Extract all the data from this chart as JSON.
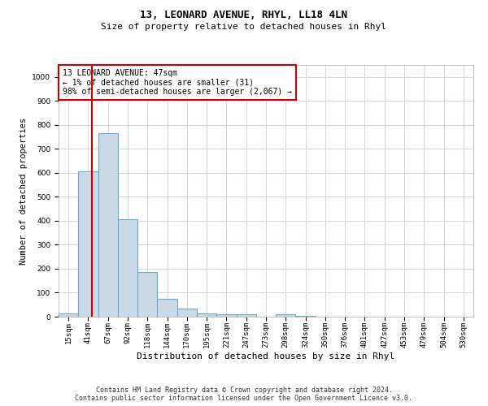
{
  "title": "13, LEONARD AVENUE, RHYL, LL18 4LN",
  "subtitle": "Size of property relative to detached houses in Rhyl",
  "xlabel": "Distribution of detached houses by size in Rhyl",
  "ylabel": "Number of detached properties",
  "bar_labels": [
    "15sqm",
    "41sqm",
    "67sqm",
    "92sqm",
    "118sqm",
    "144sqm",
    "170sqm",
    "195sqm",
    "221sqm",
    "247sqm",
    "273sqm",
    "298sqm",
    "324sqm",
    "350sqm",
    "376sqm",
    "401sqm",
    "427sqm",
    "453sqm",
    "479sqm",
    "504sqm",
    "530sqm"
  ],
  "bar_values": [
    15,
    605,
    765,
    405,
    185,
    75,
    35,
    15,
    10,
    10,
    0,
    10,
    5,
    0,
    0,
    0,
    0,
    0,
    0,
    0,
    0
  ],
  "bar_color": "#c9d9e8",
  "bar_edgecolor": "#6fa8c8",
  "bar_linewidth": 0.8,
  "property_line_x": 1.18,
  "property_line_color": "#cc0000",
  "annotation_text": "13 LEONARD AVENUE: 47sqm\n← 1% of detached houses are smaller (31)\n98% of semi-detached houses are larger (2,067) →",
  "annotation_box_color": "#cc0000",
  "ylim": [
    0,
    1050
  ],
  "yticks": [
    0,
    100,
    200,
    300,
    400,
    500,
    600,
    700,
    800,
    900,
    1000
  ],
  "grid_color": "#d0d8e8",
  "footer_line1": "Contains HM Land Registry data © Crown copyright and database right 2024.",
  "footer_line2": "Contains public sector information licensed under the Open Government Licence v3.0.",
  "title_fontsize": 9,
  "subtitle_fontsize": 8,
  "tick_fontsize": 6.5,
  "ylabel_fontsize": 7.5,
  "xlabel_fontsize": 8,
  "annotation_fontsize": 7,
  "footer_fontsize": 6
}
